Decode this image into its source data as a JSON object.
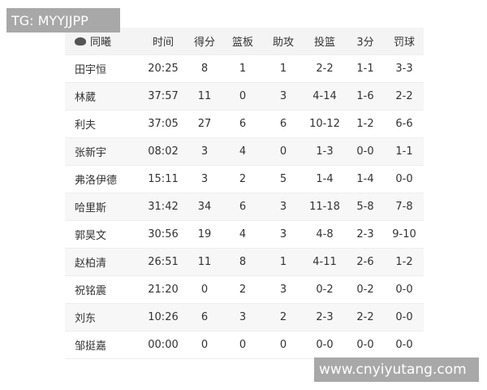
{
  "watermark_top": "TG: MYYJJPP",
  "watermark_bottom": "www.cnyiyutang.com",
  "table": {
    "team": "同曦",
    "headers": [
      "时间",
      "得分",
      "篮板",
      "助攻",
      "投篮",
      "3分",
      "罚球"
    ],
    "rows": [
      [
        "田宇恒",
        "20:25",
        "8",
        "1",
        "1",
        "2-2",
        "1-1",
        "3-3"
      ],
      [
        "林葳",
        "37:57",
        "11",
        "0",
        "3",
        "4-14",
        "1-6",
        "2-2"
      ],
      [
        "利夫",
        "37:05",
        "27",
        "6",
        "6",
        "10-12",
        "1-2",
        "6-6"
      ],
      [
        "张新宇",
        "08:02",
        "3",
        "4",
        "0",
        "1-3",
        "0-0",
        "1-1"
      ],
      [
        "弗洛伊德",
        "15:11",
        "3",
        "2",
        "5",
        "1-4",
        "1-4",
        "0-0"
      ],
      [
        "哈里斯",
        "31:42",
        "34",
        "6",
        "3",
        "11-18",
        "5-8",
        "7-8"
      ],
      [
        "郭昊文",
        "30:56",
        "19",
        "4",
        "3",
        "4-8",
        "2-3",
        "9-10"
      ],
      [
        "赵柏清",
        "26:51",
        "11",
        "8",
        "1",
        "4-11",
        "2-6",
        "1-2"
      ],
      [
        "祝铭震",
        "21:20",
        "0",
        "2",
        "3",
        "0-2",
        "0-2",
        "0-0"
      ],
      [
        "刘东",
        "10:26",
        "6",
        "3",
        "2",
        "2-3",
        "2-2",
        "0-0"
      ],
      [
        "邹挺嘉",
        "00:00",
        "0",
        "0",
        "0",
        "0-0",
        "0-0",
        "0-0"
      ]
    ]
  }
}
